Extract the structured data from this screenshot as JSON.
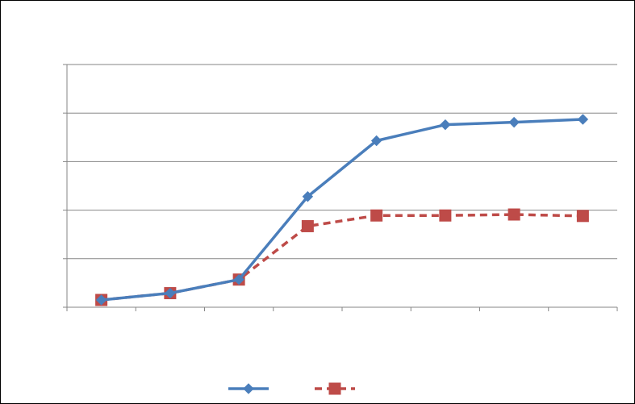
{
  "chart_data": {
    "type": "line",
    "title": "",
    "xlabel": "",
    "ylabel": "",
    "categories": [
      "",
      "",
      "",
      "",
      "",
      "",
      "",
      ""
    ],
    "ylim": [
      0,
      5
    ],
    "grid": true,
    "legend_position": "bottom",
    "series": [
      {
        "values": [
          0.15,
          0.29,
          0.57,
          2.28,
          3.43,
          3.76,
          3.81,
          3.87
        ],
        "color": "#4a7ebb",
        "marker": "diamond",
        "line_style": "solid"
      },
      {
        "values": [
          0.15,
          0.29,
          0.57,
          1.67,
          1.89,
          1.89,
          1.91,
          1.88
        ],
        "color": "#be4b48",
        "marker": "square",
        "line_style": "dashed"
      }
    ]
  }
}
